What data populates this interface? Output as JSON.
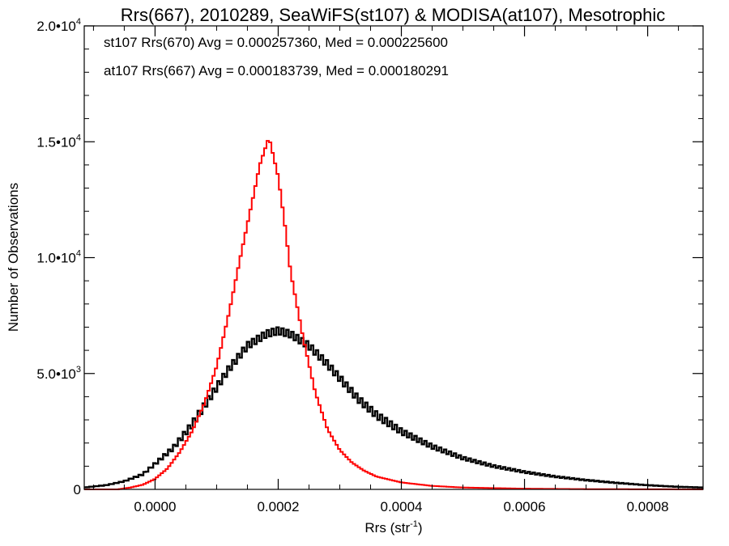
{
  "chart_data": {
    "type": "histogram",
    "title": "Rrs(667), 2010289, SeaWiFS(st107) & MODISA(at107), Mesotrophic",
    "xlabel": {
      "base": "Rrs (str",
      "sup": "-1",
      "tail": ")"
    },
    "ylabel": "Number of Observations",
    "xlim": [
      -0.000115,
      0.00089
    ],
    "ylim": [
      0,
      20000
    ],
    "grid": false,
    "x_ticks": [
      {
        "value": 0.0,
        "label": "0.0000"
      },
      {
        "value": 0.0002,
        "label": "0.0002"
      },
      {
        "value": 0.0004,
        "label": "0.0004"
      },
      {
        "value": 0.0006,
        "label": "0.0006"
      },
      {
        "value": 0.0008,
        "label": "0.0008"
      }
    ],
    "y_ticks": [
      {
        "value": 0,
        "label": "0",
        "sup": ""
      },
      {
        "value": 5000,
        "label": "5.0•10",
        "sup": "3"
      },
      {
        "value": 10000,
        "label": "1.0•10",
        "sup": "4"
      },
      {
        "value": 15000,
        "label": "1.5•10",
        "sup": "4"
      },
      {
        "value": 20000,
        "label": "2.0•10",
        "sup": "4"
      }
    ],
    "series": [
      {
        "name": "st107 Rrs(670)",
        "color": "#000000",
        "stats_text": "st107 Rrs(670) Avg = 0.000257360, Med = 0.000225600",
        "x": [
          -0.000115,
          -8e-05,
          -5e-05,
          -2e-05,
          0.0,
          3e-05,
          6e-05,
          9e-05,
          0.00012,
          0.00015,
          0.00018,
          0.0002,
          0.00022,
          0.00025,
          0.00028,
          0.0003,
          0.00033,
          0.00036,
          0.0004,
          0.00045,
          0.0005,
          0.00055,
          0.0006,
          0.00065,
          0.0007,
          0.00075,
          0.0008,
          0.00085,
          0.00089
        ],
        "values": [
          80,
          180,
          350,
          650,
          1100,
          1800,
          2800,
          4000,
          5200,
          6200,
          6700,
          6850,
          6700,
          6200,
          5400,
          4800,
          3900,
          3200,
          2500,
          1850,
          1350,
          1000,
          750,
          550,
          400,
          280,
          180,
          110,
          80
        ],
        "noise": 150
      },
      {
        "name": "at107 Rrs(667)",
        "color": "#ff0000",
        "stats_text": "at107 Rrs(667) Avg = 0.000183739, Med = 0.000180291",
        "x": [
          -0.000115,
          -6e-05,
          -4e-05,
          -2e-05,
          0.0,
          2e-05,
          4e-05,
          6e-05,
          8e-05,
          0.0001,
          0.00012,
          0.00014,
          0.00016,
          0.00017,
          0.000185,
          0.0002,
          0.00021,
          0.00022,
          0.00024,
          0.00026,
          0.00028,
          0.0003,
          0.00032,
          0.00034,
          0.00036,
          0.0004,
          0.00045,
          0.0005,
          0.0006,
          0.0007,
          0.00089
        ],
        "values": [
          0,
          0,
          80,
          200,
          450,
          900,
          1600,
          2500,
          3700,
          5300,
          7600,
          10200,
          12700,
          14000,
          15200,
          13500,
          11600,
          9400,
          6600,
          4200,
          2600,
          1700,
          1150,
          800,
          550,
          300,
          150,
          80,
          30,
          10,
          0
        ],
        "noise": 0
      }
    ]
  }
}
